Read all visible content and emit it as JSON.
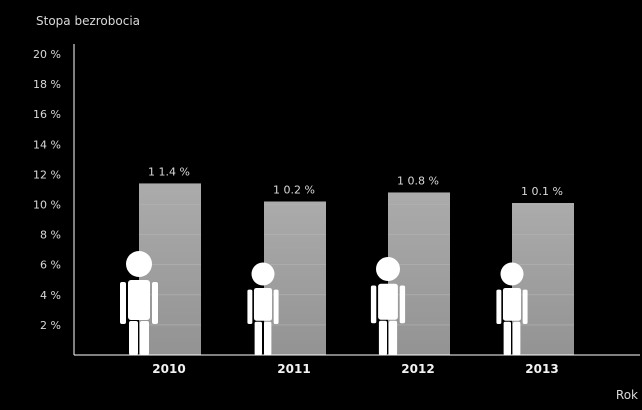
{
  "chart_data": {
    "type": "bar",
    "title": "",
    "ylabel": "Stopa bezrobocia",
    "xlabel": "Rok",
    "categories": [
      "2010",
      "2011",
      "2012",
      "2013"
    ],
    "values": [
      11.4,
      10.2,
      10.8,
      10.1
    ],
    "value_labels": [
      "1 1.4 %",
      "1 0.2 %",
      "1 0.8 %",
      "1 0.1 %"
    ],
    "ylim": [
      0,
      20
    ],
    "y_ticks": [
      2,
      4,
      6,
      8,
      10,
      12,
      14,
      16,
      18,
      20
    ],
    "y_tick_labels": [
      "2 %",
      "4 %",
      "6 %",
      "8 %",
      "10 %",
      "12 %",
      "14 %",
      "16 %",
      "18 %",
      "20 %"
    ],
    "grid": false,
    "bar_color": "#a6a6a6",
    "figure_icon": "person-icon",
    "background": "#000000"
  }
}
